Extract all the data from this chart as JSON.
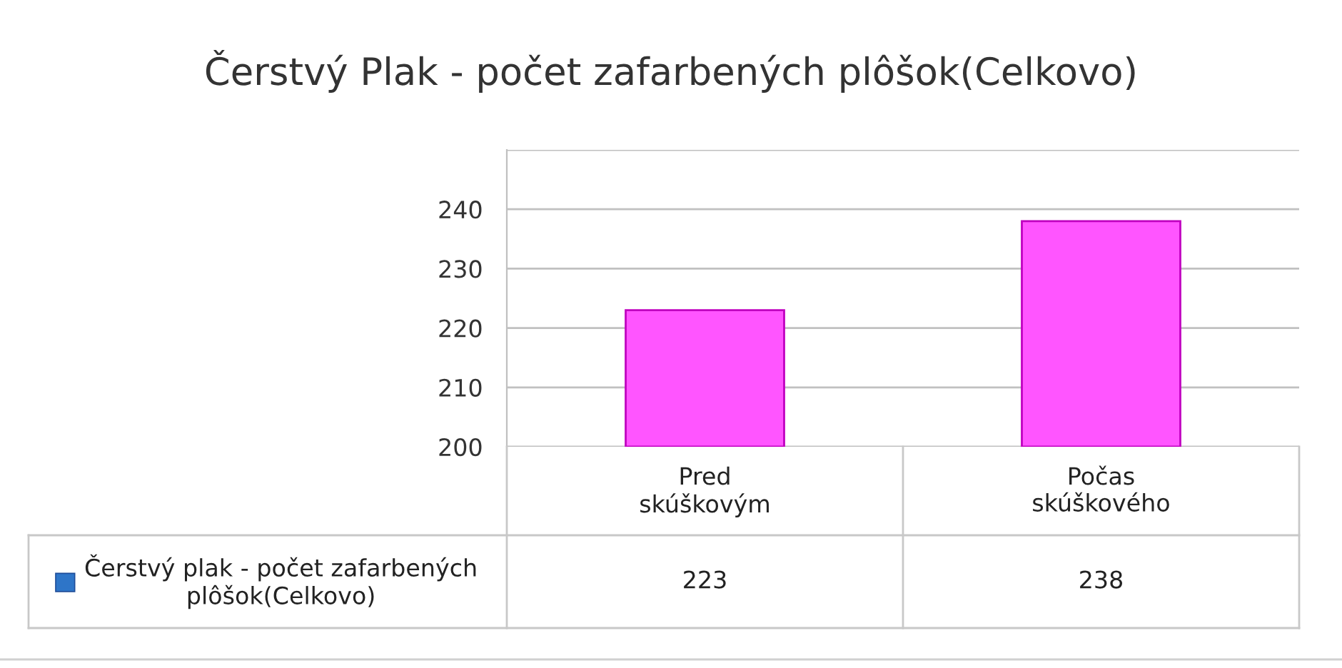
{
  "chart_data": {
    "type": "bar",
    "title": "Čerstvý Plak - počet zafarbených plôšok(Celkovo)",
    "categories": [
      "Pred skúškovým",
      "Počas skúškového"
    ],
    "series": [
      {
        "name": "Čerstvý plak - počet zafarbených plôšok(Celkovo)",
        "color": "#2e75c8",
        "colors": [
          "#ff55ff",
          "#ff55ff"
        ],
        "values": [
          223,
          238
        ]
      }
    ],
    "ylim": [
      200,
      250
    ],
    "yticks": [
      200,
      210,
      220,
      230,
      240,
      {
        "value": 250,
        "label": null
      }
    ],
    "grid": "y",
    "legend": "bottom",
    "data_labels": true
  }
}
